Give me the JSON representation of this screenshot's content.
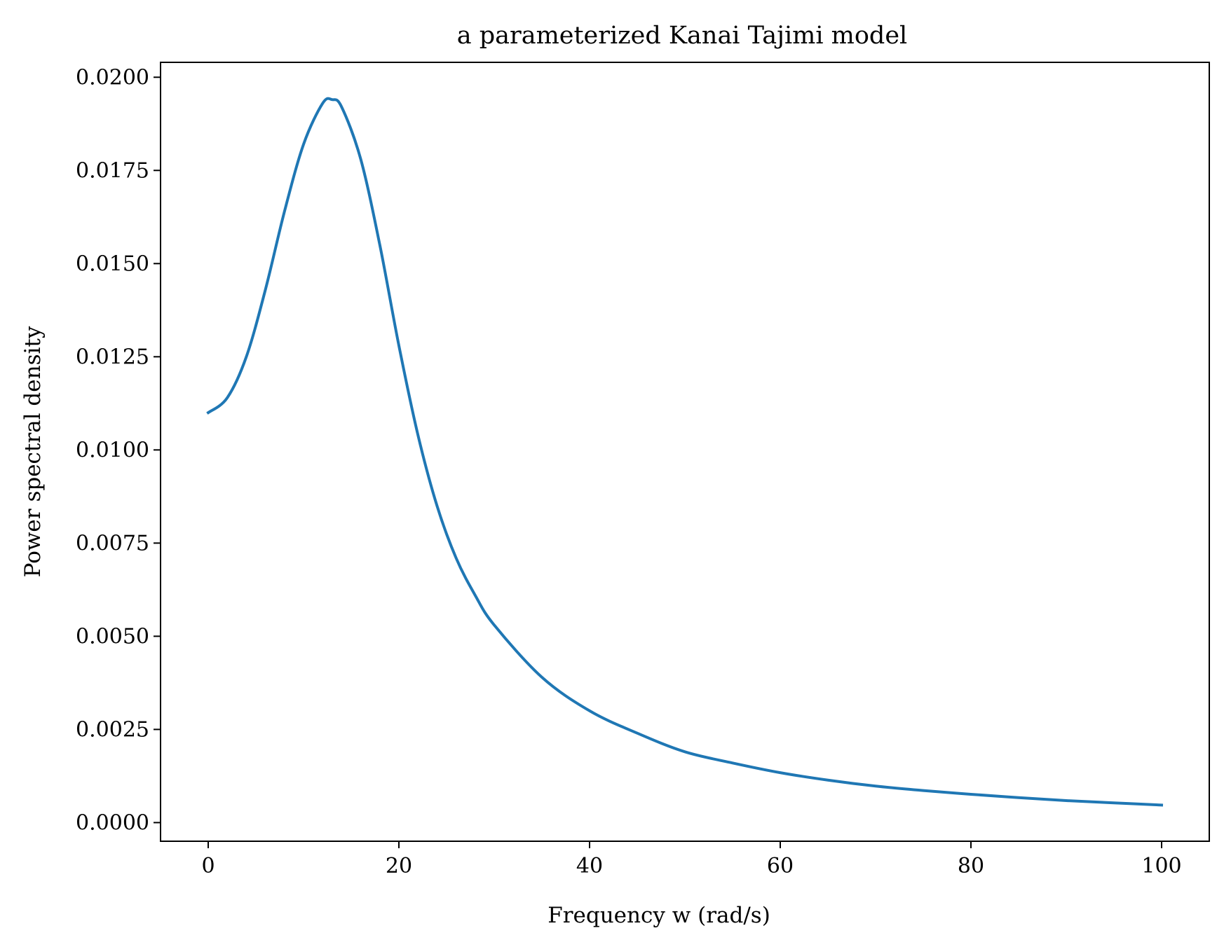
{
  "chart_data": {
    "type": "line",
    "title": "a parameterized Kanai Tajimi model",
    "xlabel": "Frequency w (rad/s)",
    "ylabel": "Power spectral density",
    "xlim": [
      -5,
      105
    ],
    "ylim": [
      -0.0005,
      0.0204
    ],
    "xticks": [
      0,
      20,
      40,
      60,
      80,
      100
    ],
    "xtick_labels": [
      "0",
      "20",
      "40",
      "60",
      "80",
      "100"
    ],
    "yticks": [
      0.0,
      0.0025,
      0.005,
      0.0075,
      0.01,
      0.0125,
      0.015,
      0.0175,
      0.02
    ],
    "ytick_labels": [
      "0.0000",
      "0.0025",
      "0.0050",
      "0.0075",
      "0.0100",
      "0.0125",
      "0.0150",
      "0.0175",
      "0.0200"
    ],
    "grid": false,
    "series": [
      {
        "color": "#1f77b4",
        "x": [
          0,
          2,
          4,
          6,
          8,
          10,
          12,
          13,
          14,
          16,
          18,
          20,
          22,
          24,
          26,
          28,
          30,
          35,
          40,
          45,
          50,
          55,
          60,
          65,
          70,
          75,
          80,
          85,
          90,
          95,
          100
        ],
        "y": [
          0.011,
          0.0114,
          0.0125,
          0.0143,
          0.0164,
          0.0182,
          0.0193,
          0.0194,
          0.0192,
          0.0178,
          0.0155,
          0.0128,
          0.0104,
          0.0085,
          0.0071,
          0.0061,
          0.0053,
          0.0039,
          0.003,
          0.0024,
          0.0019,
          0.0016,
          0.00134,
          0.00114,
          0.00098,
          0.00086,
          0.00076,
          0.00067,
          0.00059,
          0.00053,
          0.00047
        ]
      }
    ]
  }
}
